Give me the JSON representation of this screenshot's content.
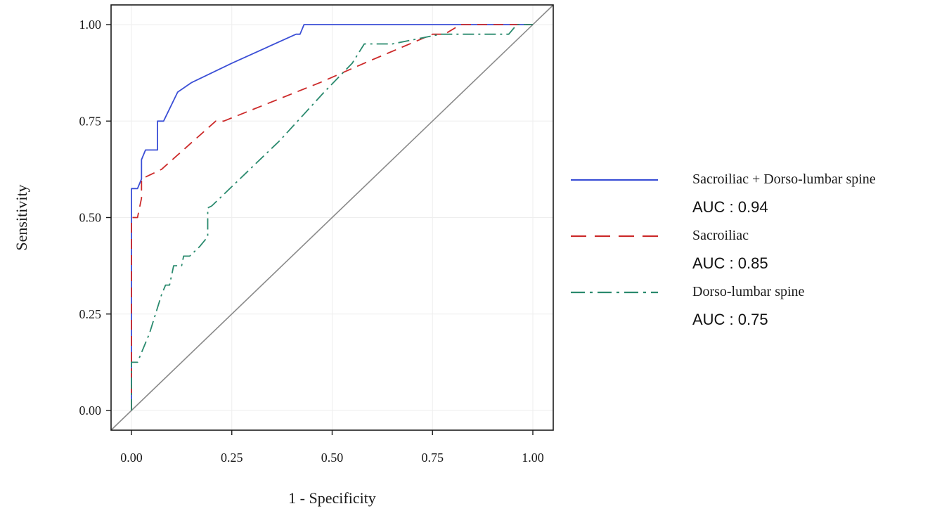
{
  "chart_data": {
    "type": "line",
    "xlabel": "1 - Specificity",
    "ylabel": "Sensitivity",
    "xlim": [
      0,
      1
    ],
    "ylim": [
      0,
      1
    ],
    "x_ticks": [
      "0.00",
      "0.25",
      "0.50",
      "0.75",
      "1.00"
    ],
    "y_ticks": [
      "0.00",
      "0.25",
      "0.50",
      "0.75",
      "1.00"
    ],
    "grid": true,
    "legend_position": "right",
    "reference_line": {
      "points": [
        [
          0,
          0
        ],
        [
          1,
          1
        ]
      ],
      "color": "#8a8a8a"
    },
    "series": [
      {
        "name": "Sacroiliac + Dorso-lumbar spine",
        "auc_label": "AUC : 0.94",
        "color": "#3b4fd6",
        "dash": "solid",
        "points": [
          [
            0,
            0
          ],
          [
            0,
            0.575
          ],
          [
            0.015,
            0.575
          ],
          [
            0.025,
            0.6
          ],
          [
            0.025,
            0.65
          ],
          [
            0.035,
            0.675
          ],
          [
            0.065,
            0.675
          ],
          [
            0.065,
            0.75
          ],
          [
            0.08,
            0.75
          ],
          [
            0.115,
            0.825
          ],
          [
            0.15,
            0.85
          ],
          [
            0.25,
            0.9
          ],
          [
            0.41,
            0.975
          ],
          [
            0.42,
            0.975
          ],
          [
            0.43,
            1
          ],
          [
            1,
            1
          ]
        ]
      },
      {
        "name": "Sacroiliac",
        "auc_label": "AUC : 0.85",
        "color": "#cc2a2a",
        "dash": "dashed",
        "points": [
          [
            0,
            0
          ],
          [
            0,
            0.5
          ],
          [
            0.015,
            0.5
          ],
          [
            0.025,
            0.55
          ],
          [
            0.025,
            0.6
          ],
          [
            0.075,
            0.625
          ],
          [
            0.21,
            0.75
          ],
          [
            0.23,
            0.75
          ],
          [
            0.47,
            0.85
          ],
          [
            0.58,
            0.9
          ],
          [
            0.75,
            0.975
          ],
          [
            0.78,
            0.975
          ],
          [
            0.82,
            1
          ],
          [
            1,
            1
          ]
        ]
      },
      {
        "name": "Dorso-lumbar spine",
        "auc_label": "AUC : 0.75",
        "color": "#2a8a6e",
        "dash": "dashdot",
        "points": [
          [
            0,
            0
          ],
          [
            0,
            0.125
          ],
          [
            0.015,
            0.125
          ],
          [
            0.045,
            0.2
          ],
          [
            0.075,
            0.3
          ],
          [
            0.085,
            0.325
          ],
          [
            0.095,
            0.325
          ],
          [
            0.105,
            0.375
          ],
          [
            0.125,
            0.375
          ],
          [
            0.13,
            0.4
          ],
          [
            0.145,
            0.4
          ],
          [
            0.17,
            0.425
          ],
          [
            0.19,
            0.45
          ],
          [
            0.19,
            0.525
          ],
          [
            0.2,
            0.53
          ],
          [
            0.37,
            0.7
          ],
          [
            0.48,
            0.825
          ],
          [
            0.55,
            0.9
          ],
          [
            0.58,
            0.95
          ],
          [
            0.65,
            0.95
          ],
          [
            0.77,
            0.975
          ],
          [
            0.94,
            0.975
          ],
          [
            0.96,
            1
          ],
          [
            1,
            1
          ]
        ]
      }
    ]
  }
}
